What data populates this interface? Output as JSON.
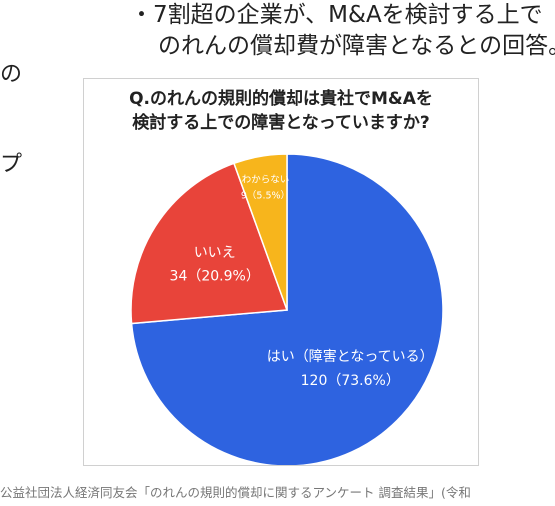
{
  "side_text": {
    "line1": "の",
    "line2": "プ"
  },
  "bullets": {
    "line1": "・7割超の企業が、M&Aを検討する上で",
    "line2": "のれんの償却費が障害となるとの回答。"
  },
  "chart_data": {
    "type": "pie",
    "title_lines": [
      "Q.のれんの規則的償却は貴社でM&Aを",
      "検討する上での障害となっていますか?"
    ],
    "slices": [
      {
        "label": "はい（障害となっている）",
        "value": 120,
        "percent": "73.6%",
        "value_text": "120（73.6%）",
        "color": "#2e63e0"
      },
      {
        "label": "いいえ",
        "value": 34,
        "percent": "20.9%",
        "value_text": "34（20.9%）",
        "color": "#e8443a"
      },
      {
        "label": "わからない",
        "value": 9,
        "percent": "5.5%",
        "value_text": "9（5.5%）",
        "color": "#f7b51c"
      }
    ],
    "start": "12 o'clock",
    "direction": "clockwise"
  },
  "footer": "公益社団法人経済同友会「のれんの規則的償却に関するアンケート 調査結果」(令和"
}
